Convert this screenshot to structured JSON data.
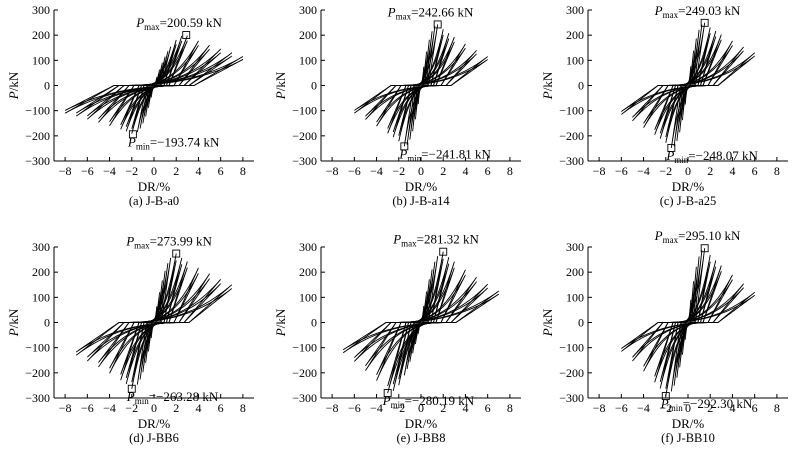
{
  "figure": {
    "panels": [
      {
        "caption": "(a) J-B-a0",
        "pmax_label": "P",
        "pmax_sub": "max",
        "pmax_text": "=200.59 kN",
        "pmin_label": "P",
        "pmin_sub": "min",
        "pmin_text": "=−193.74 kN"
      },
      {
        "caption": "(b) J-B-a14",
        "pmax_label": "P",
        "pmax_sub": "max",
        "pmax_text": "=242.66 kN",
        "pmin_label": "P",
        "pmin_sub": "min",
        "pmin_text": "=−241.81 kN"
      },
      {
        "caption": "(c) J-B-a25",
        "pmax_label": "P",
        "pmax_sub": "max",
        "pmax_text": "=249.03 kN",
        "pmin_label": "P",
        "pmin_sub": "min",
        "pmin_text": "=−248.07 kN"
      },
      {
        "caption": "(d) J-BB6",
        "pmax_label": "P",
        "pmax_sub": "max",
        "pmax_text": "=273.99 kN",
        "pmin_label": "P",
        "pmin_sub": "min",
        "pmin_text": "=−263.28 kN"
      },
      {
        "caption": "(e) J-BB8",
        "pmax_label": "P",
        "pmax_sub": "max",
        "pmax_text": "=281.32 kN",
        "pmin_label": "P",
        "pmin_sub": "min",
        "pmin_text": "=−280.19 kN"
      },
      {
        "caption": "(f) J-BB10",
        "pmax_label": "P",
        "pmax_sub": "max",
        "pmax_text": "=295.10 kN",
        "pmin_label": "P",
        "pmin_sub": "min",
        "pmin_text": "=−292.30 kN"
      }
    ]
  },
  "chart_data": [
    {
      "type": "line",
      "title": "(a) J-B-a0",
      "xlabel": "DR/%",
      "ylabel": "P/kN",
      "xlim": [
        -9,
        9
      ],
      "ylim": [
        -300,
        300
      ],
      "xticks": [
        "−8",
        "−6",
        "−4",
        "−2",
        "0",
        "2",
        "4",
        "6",
        "8"
      ],
      "yticks": [
        "300",
        "200",
        "100",
        "0",
        "−100",
        "−200",
        "−300"
      ],
      "drifts": [
        0.25,
        0.5,
        0.75,
        1.0,
        1.25,
        1.5,
        2.0,
        2.5,
        3.0,
        4.0,
        5.0,
        6.0,
        7.0,
        8.0
      ],
      "peak": {
        "dr": 2.9,
        "p": 200.59
      },
      "valley": {
        "dr": -1.9,
        "p": -193.74
      },
      "end_force": [
        115,
        -110
      ]
    },
    {
      "type": "line",
      "title": "(b) J-B-a14",
      "xlabel": "DR/%",
      "ylabel": "P/kN",
      "xlim": [
        -9,
        9
      ],
      "ylim": [
        -300,
        300
      ],
      "xticks": [
        "−8",
        "−6",
        "−4",
        "−2",
        "0",
        "2",
        "4",
        "6",
        "8"
      ],
      "yticks": [
        "300",
        "200",
        "100",
        "0",
        "−100",
        "−200",
        "−300"
      ],
      "drifts": [
        0.25,
        0.5,
        0.75,
        1.0,
        1.25,
        1.5,
        2.0,
        2.5,
        3.0,
        4.0,
        5.0,
        6.0
      ],
      "peak": {
        "dr": 1.5,
        "p": 242.66
      },
      "valley": {
        "dr": -1.5,
        "p": -241.81
      },
      "end_force": [
        115,
        -110
      ]
    },
    {
      "type": "line",
      "title": "(c) J-B-a25",
      "xlabel": "DR/%",
      "ylabel": "P/kN",
      "xlim": [
        -9,
        9
      ],
      "ylim": [
        -300,
        300
      ],
      "xticks": [
        "−8",
        "−6",
        "−4",
        "−2",
        "0",
        "2",
        "4",
        "6",
        "8"
      ],
      "yticks": [
        "300",
        "200",
        "100",
        "0",
        "−100",
        "−200",
        "−300"
      ],
      "drifts": [
        0.25,
        0.5,
        0.75,
        1.0,
        1.25,
        1.5,
        2.0,
        2.5,
        3.0,
        4.0,
        5.0,
        6.0
      ],
      "peak": {
        "dr": 1.5,
        "p": 249.03
      },
      "valley": {
        "dr": -1.5,
        "p": -248.07
      },
      "end_force": [
        130,
        -115
      ]
    },
    {
      "type": "line",
      "title": "(d) J-BB6",
      "xlabel": "DR/%",
      "ylabel": "P/kN",
      "xlim": [
        -9,
        9
      ],
      "ylim": [
        -300,
        300
      ],
      "xticks": [
        "−8",
        "−6",
        "−4",
        "−2",
        "0",
        "2",
        "4",
        "6",
        "8"
      ],
      "yticks": [
        "300",
        "200",
        "100",
        "0",
        "−100",
        "−200",
        "−300"
      ],
      "drifts": [
        0.25,
        0.5,
        0.75,
        1.0,
        1.25,
        1.5,
        2.0,
        2.5,
        3.0,
        4.0,
        5.0,
        6.0,
        7.0
      ],
      "peak": {
        "dr": 2.0,
        "p": 273.99
      },
      "valley": {
        "dr": -2.0,
        "p": -263.28
      },
      "end_force": [
        150,
        -130
      ]
    },
    {
      "type": "line",
      "title": "(e) J-BB8",
      "xlabel": "DR/%",
      "ylabel": "P/kN",
      "xlim": [
        -9,
        9
      ],
      "ylim": [
        -300,
        300
      ],
      "xticks": [
        "−8",
        "−6",
        "−4",
        "−2",
        "0",
        "2",
        "4",
        "6",
        "8"
      ],
      "yticks": [
        "300",
        "200",
        "100",
        "0",
        "−100",
        "−200",
        "−300"
      ],
      "drifts": [
        0.25,
        0.5,
        0.75,
        1.0,
        1.25,
        1.5,
        2.0,
        2.5,
        3.0,
        4.0,
        5.0,
        6.0,
        7.0
      ],
      "peak": {
        "dr": 2.0,
        "p": 281.32
      },
      "valley": {
        "dr": -3.0,
        "p": -280.19
      },
      "end_force": [
        125,
        -120
      ]
    },
    {
      "type": "line",
      "title": "(f) J-BB10",
      "xlabel": "DR/%",
      "ylabel": "P/kN",
      "xlim": [
        -9,
        9
      ],
      "ylim": [
        -300,
        300
      ],
      "xticks": [
        "−8",
        "−6",
        "−4",
        "−2",
        "0",
        "2",
        "4",
        "6",
        "8"
      ],
      "yticks": [
        "300",
        "200",
        "100",
        "0",
        "−100",
        "−200",
        "−300"
      ],
      "drifts": [
        0.25,
        0.5,
        0.75,
        1.0,
        1.25,
        1.5,
        2.0,
        2.5,
        3.0,
        4.0,
        5.0,
        6.0
      ],
      "peak": {
        "dr": 1.5,
        "p": 295.1
      },
      "valley": {
        "dr": -2.0,
        "p": -292.3
      },
      "end_force": [
        120,
        -115
      ]
    }
  ]
}
